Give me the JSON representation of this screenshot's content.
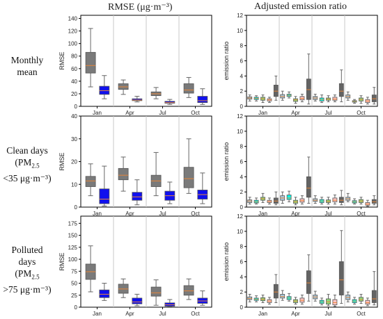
{
  "column_titles": {
    "rmse": "RMSE (μg·m⁻³)",
    "ratio": "Adjusted emission ratio"
  },
  "row_labels": {
    "monthly": [
      "Monthly",
      "mean"
    ],
    "clean": {
      "l1": "Clean days",
      "l2a": "(PM",
      "l2sub": "2.5",
      "l3": "<35 μg·m⁻³)"
    },
    "polluted": {
      "l1": "Polluted",
      "l2": "days",
      "l3a": "(PM",
      "l3sub": "2.5",
      "l4": ">75 μg·m⁻³)"
    }
  },
  "colors": {
    "gray": "#7a7a7a",
    "blue": "#1010ee",
    "median": "#e8873a",
    "ratio_palette": [
      "#a8c8dc",
      "#00ffee",
      "#90d878",
      "#ffc4c4",
      "#646464"
    ]
  },
  "chart_data": [
    {
      "type": "box",
      "panel": "rmse-monthly",
      "ylabel": "RMSE",
      "ylim": [
        0,
        145
      ],
      "yticks": [
        0,
        20,
        40,
        60,
        80,
        100,
        120,
        140
      ],
      "months": [
        "Jan",
        "Apr",
        "Jul",
        "Oct"
      ],
      "boxes": [
        {
          "month": "Jan",
          "series": "gray",
          "min": 31,
          "q1": 53,
          "median": 65,
          "q3": 86,
          "max": 124
        },
        {
          "month": "Jan",
          "series": "blue",
          "min": 12,
          "q1": 19,
          "median": 25,
          "q3": 32,
          "max": 49
        },
        {
          "month": "Apr",
          "series": "gray",
          "min": 19,
          "q1": 27,
          "median": 31,
          "q3": 36,
          "max": 42
        },
        {
          "month": "Apr",
          "series": "blue",
          "min": 7,
          "q1": 9,
          "median": 10,
          "q3": 12,
          "max": 16
        },
        {
          "month": "Jul",
          "series": "gray",
          "min": 12,
          "q1": 17,
          "median": 20,
          "q3": 23,
          "max": 30
        },
        {
          "month": "Jul",
          "series": "blue",
          "min": 3,
          "q1": 5,
          "median": 6,
          "q3": 8,
          "max": 11
        },
        {
          "month": "Oct",
          "series": "gray",
          "min": 14,
          "q1": 21,
          "median": 26,
          "q3": 36,
          "max": 46
        },
        {
          "month": "Oct",
          "series": "blue",
          "min": 3,
          "q1": 6,
          "median": 9,
          "q3": 16,
          "max": 28
        }
      ]
    },
    {
      "type": "box",
      "panel": "rmse-clean",
      "ylabel": "RMSE",
      "ylim": [
        0,
        40
      ],
      "yticks": [
        0,
        10,
        20,
        30,
        40
      ],
      "months": [
        "Jan",
        "Apr",
        "Jul",
        "Oct"
      ],
      "boxes": [
        {
          "month": "Jan",
          "series": "gray",
          "min": 5,
          "q1": 9,
          "median": 11.5,
          "q3": 13.5,
          "max": 19
        },
        {
          "month": "Jan",
          "series": "blue",
          "min": 0.5,
          "q1": 1.5,
          "median": 3.5,
          "q3": 8,
          "max": 18
        },
        {
          "month": "Apr",
          "series": "gray",
          "min": 7,
          "q1": 12,
          "median": 14,
          "q3": 17,
          "max": 22
        },
        {
          "month": "Apr",
          "series": "blue",
          "min": 1,
          "q1": 3,
          "median": 4.5,
          "q3": 6.5,
          "max": 12
        },
        {
          "month": "Jul",
          "series": "gray",
          "min": 5,
          "q1": 9,
          "median": 11.5,
          "q3": 14,
          "max": 24
        },
        {
          "month": "Jul",
          "series": "blue",
          "min": 1.5,
          "q1": 3,
          "median": 5,
          "q3": 7,
          "max": 11
        },
        {
          "month": "Oct",
          "series": "gray",
          "min": 6,
          "q1": 8.5,
          "median": 12.5,
          "q3": 17.5,
          "max": 30
        },
        {
          "month": "Oct",
          "series": "blue",
          "min": 1.5,
          "q1": 3.5,
          "median": 5.5,
          "q3": 7.5,
          "max": 15
        }
      ]
    },
    {
      "type": "box",
      "panel": "rmse-polluted",
      "ylabel": "RMSE",
      "ylim": [
        0,
        190
      ],
      "yticks": [
        0,
        25,
        50,
        75,
        100,
        125,
        150,
        175
      ],
      "months": [
        "Jan",
        "Apr",
        "Jul",
        "Oct"
      ],
      "boxes": [
        {
          "month": "Jan",
          "series": "gray",
          "min": 32,
          "q1": 58,
          "median": 74,
          "q3": 90,
          "max": 128
        },
        {
          "month": "Jan",
          "series": "blue",
          "min": 14,
          "q1": 20,
          "median": 27,
          "q3": 36,
          "max": 50
        },
        {
          "month": "Apr",
          "series": "gray",
          "min": 20,
          "q1": 29,
          "median": 38,
          "q3": 48,
          "max": 59
        },
        {
          "month": "Apr",
          "series": "blue",
          "min": 3,
          "q1": 7,
          "median": 11,
          "q3": 19,
          "max": 27
        },
        {
          "month": "Jul",
          "series": "gray",
          "min": 4,
          "q1": 23,
          "median": 30,
          "q3": 42,
          "max": 57
        },
        {
          "month": "Jul",
          "series": "blue",
          "min": 1,
          "q1": 2,
          "median": 5,
          "q3": 9,
          "max": 16
        },
        {
          "month": "Oct",
          "series": "gray",
          "min": 16,
          "q1": 25,
          "median": 34,
          "q3": 45,
          "max": 59
        },
        {
          "month": "Oct",
          "series": "blue",
          "min": 4,
          "q1": 8,
          "median": 13,
          "q3": 19,
          "max": 34
        }
      ]
    },
    {
      "type": "box",
      "panel": "ratio-monthly",
      "ylabel": "emission ratio",
      "ylim": [
        0,
        12
      ],
      "yticks": [
        0,
        2,
        4,
        6,
        8,
        10,
        12
      ],
      "months": [
        "Jan",
        "Apr",
        "Jul",
        "Oct"
      ],
      "boxes": [
        {
          "month": "Jan",
          "min": 0.7,
          "q1": 0.95,
          "median": 1.1,
          "q3": 1.25,
          "max": 1.5
        },
        {
          "month": "Jan",
          "min": 0.7,
          "q1": 0.9,
          "median": 1.05,
          "q3": 1.2,
          "max": 1.4
        },
        {
          "month": "Jan",
          "min": 0.5,
          "q1": 0.8,
          "median": 1.0,
          "q3": 1.2,
          "max": 1.5
        },
        {
          "month": "Jan",
          "min": 0.5,
          "q1": 0.7,
          "median": 0.85,
          "q3": 1.0,
          "max": 1.2
        },
        {
          "month": "Jan",
          "min": 0.8,
          "q1": 1.3,
          "median": 2.0,
          "q3": 2.8,
          "max": 4.0
        },
        {
          "month": "Apr",
          "min": 0.8,
          "q1": 1.1,
          "median": 1.3,
          "q3": 1.55,
          "max": 2.0
        },
        {
          "month": "Apr",
          "min": 1.1,
          "q1": 1.3,
          "median": 1.45,
          "q3": 1.6,
          "max": 1.9
        },
        {
          "month": "Apr",
          "min": 0.4,
          "q1": 0.65,
          "median": 0.85,
          "q3": 1.0,
          "max": 1.3
        },
        {
          "month": "Apr",
          "min": 0.6,
          "q1": 0.85,
          "median": 1.05,
          "q3": 1.3,
          "max": 1.6
        },
        {
          "month": "Apr",
          "min": 0.3,
          "q1": 0.9,
          "median": 2.2,
          "q3": 3.6,
          "max": 6.9
        },
        {
          "month": "Jul",
          "min": 0.7,
          "q1": 0.9,
          "median": 1.1,
          "q3": 1.3,
          "max": 1.6
        },
        {
          "month": "Jul",
          "min": 0.5,
          "q1": 0.7,
          "median": 0.9,
          "q3": 1.1,
          "max": 1.5
        },
        {
          "month": "Jul",
          "min": 0.6,
          "q1": 0.8,
          "median": 0.95,
          "q3": 1.1,
          "max": 1.4
        },
        {
          "month": "Jul",
          "min": 0.6,
          "q1": 0.8,
          "median": 0.95,
          "q3": 1.2,
          "max": 1.5
        },
        {
          "month": "Jul",
          "min": 0.6,
          "q1": 1.3,
          "median": 2.0,
          "q3": 3.0,
          "max": 4.8
        },
        {
          "month": "Oct",
          "min": 0.8,
          "q1": 1.1,
          "median": 1.3,
          "q3": 1.5,
          "max": 1.9
        },
        {
          "month": "Oct",
          "min": 0.4,
          "q1": 0.55,
          "median": 0.65,
          "q3": 0.75,
          "max": 0.9
        },
        {
          "month": "Oct",
          "min": 0.4,
          "q1": 0.7,
          "median": 0.9,
          "q3": 1.1,
          "max": 1.4
        },
        {
          "month": "Oct",
          "min": 0.3,
          "q1": 0.5,
          "median": 0.7,
          "q3": 0.9,
          "max": 1.2
        },
        {
          "month": "Oct",
          "min": 0.3,
          "q1": 0.6,
          "median": 1.0,
          "q3": 1.5,
          "max": 2.5
        }
      ]
    },
    {
      "type": "box",
      "panel": "ratio-clean",
      "ylabel": "emission ratio",
      "ylim": [
        0,
        12
      ],
      "yticks": [
        0,
        2,
        4,
        6,
        8,
        10,
        12
      ],
      "months": [
        "Jan",
        "Apr",
        "Jul",
        "Oct"
      ],
      "boxes": [
        {
          "month": "Jan",
          "min": 0.4,
          "q1": 0.6,
          "median": 0.8,
          "q3": 0.95,
          "max": 1.3
        },
        {
          "month": "Jan",
          "min": 0.4,
          "q1": 0.55,
          "median": 0.7,
          "q3": 0.9,
          "max": 1.2
        },
        {
          "month": "Jan",
          "min": 0.6,
          "q1": 0.9,
          "median": 1.1,
          "q3": 1.3,
          "max": 1.8
        },
        {
          "month": "Jan",
          "min": 0.4,
          "q1": 0.6,
          "median": 0.75,
          "q3": 0.9,
          "max": 1.2
        },
        {
          "month": "Jan",
          "min": 0.3,
          "q1": 0.5,
          "median": 0.8,
          "q3": 1.2,
          "max": 2.0
        },
        {
          "month": "Apr",
          "min": 0.5,
          "q1": 0.9,
          "median": 1.2,
          "q3": 1.5,
          "max": 2.0
        },
        {
          "month": "Apr",
          "min": 0.7,
          "q1": 1.0,
          "median": 1.2,
          "q3": 1.6,
          "max": 2.1
        },
        {
          "month": "Apr",
          "min": 0.3,
          "q1": 0.5,
          "median": 0.7,
          "q3": 0.9,
          "max": 1.3
        },
        {
          "month": "Apr",
          "min": 0.4,
          "q1": 0.65,
          "median": 0.85,
          "q3": 1.1,
          "max": 1.5
        },
        {
          "month": "Apr",
          "min": 0.5,
          "q1": 1.3,
          "median": 2.5,
          "q3": 4.0,
          "max": 6.6
        },
        {
          "month": "Jul",
          "min": 0.5,
          "q1": 0.75,
          "median": 0.9,
          "q3": 1.1,
          "max": 1.5
        },
        {
          "month": "Jul",
          "min": 0.4,
          "q1": 0.6,
          "median": 0.8,
          "q3": 1.0,
          "max": 1.3
        },
        {
          "month": "Jul",
          "min": 0.4,
          "q1": 0.6,
          "median": 0.75,
          "q3": 0.95,
          "max": 1.3
        },
        {
          "month": "Jul",
          "min": 0.4,
          "q1": 0.7,
          "median": 0.9,
          "q3": 1.2,
          "max": 1.6
        },
        {
          "month": "Jul",
          "min": 0.3,
          "q1": 0.6,
          "median": 0.9,
          "q3": 1.3,
          "max": 2.2
        },
        {
          "month": "Oct",
          "min": 0.7,
          "q1": 0.9,
          "median": 1.1,
          "q3": 1.3,
          "max": 1.8
        },
        {
          "month": "Oct",
          "min": 0.4,
          "q1": 0.55,
          "median": 0.7,
          "q3": 0.85,
          "max": 1.1
        },
        {
          "month": "Oct",
          "min": 0.4,
          "q1": 0.6,
          "median": 0.8,
          "q3": 1.0,
          "max": 1.3
        },
        {
          "month": "Oct",
          "min": 0.1,
          "q1": 0.25,
          "median": 0.4,
          "q3": 0.6,
          "max": 0.9
        },
        {
          "month": "Oct",
          "min": 0.3,
          "q1": 0.5,
          "median": 0.7,
          "q3": 1.0,
          "max": 1.5
        }
      ]
    },
    {
      "type": "box",
      "panel": "ratio-polluted",
      "ylabel": "emission ratio",
      "ylim": [
        0,
        12
      ],
      "yticks": [
        0,
        2,
        4,
        6,
        8,
        10,
        12
      ],
      "months": [
        "Jan",
        "Apr",
        "Jul",
        "Oct"
      ],
      "boxes": [
        {
          "month": "Jan",
          "min": 0.7,
          "q1": 1.0,
          "median": 1.15,
          "q3": 1.35,
          "max": 1.7
        },
        {
          "month": "Jan",
          "min": 0.7,
          "q1": 0.9,
          "median": 1.05,
          "q3": 1.2,
          "max": 1.5
        },
        {
          "month": "Jan",
          "min": 0.6,
          "q1": 0.85,
          "median": 1.05,
          "q3": 1.25,
          "max": 1.6
        },
        {
          "month": "Jan",
          "min": 0.4,
          "q1": 0.6,
          "median": 0.8,
          "q3": 1.0,
          "max": 1.3
        },
        {
          "month": "Jan",
          "min": 0.6,
          "q1": 1.2,
          "median": 2.0,
          "q3": 3.0,
          "max": 4.3
        },
        {
          "month": "Apr",
          "min": 0.9,
          "q1": 1.2,
          "median": 1.4,
          "q3": 1.7,
          "max": 2.2
        },
        {
          "month": "Apr",
          "min": 0.8,
          "q1": 1.0,
          "median": 1.2,
          "q3": 1.4,
          "max": 1.8
        },
        {
          "month": "Apr",
          "min": 0.4,
          "q1": 0.6,
          "median": 0.8,
          "q3": 1.0,
          "max": 1.3
        },
        {
          "month": "Apr",
          "min": 0.4,
          "q1": 0.65,
          "median": 0.9,
          "q3": 1.2,
          "max": 1.6
        },
        {
          "month": "Apr",
          "min": 0.8,
          "q1": 1.8,
          "median": 3.2,
          "q3": 4.8,
          "max": 6.9
        },
        {
          "month": "Jul",
          "min": 0.8,
          "q1": 1.1,
          "median": 1.35,
          "q3": 1.6,
          "max": 2.1
        },
        {
          "month": "Jul",
          "min": 0.3,
          "q1": 0.5,
          "median": 0.7,
          "q3": 0.9,
          "max": 1.2
        },
        {
          "month": "Jul",
          "min": 0.2,
          "q1": 0.4,
          "median": 0.7,
          "q3": 1.1,
          "max": 1.7
        },
        {
          "month": "Jul",
          "min": 0.1,
          "q1": 0.3,
          "median": 0.6,
          "q3": 1.0,
          "max": 1.6
        },
        {
          "month": "Jul",
          "min": 0.5,
          "q1": 1.6,
          "median": 3.6,
          "q3": 6.0,
          "max": 10.1
        },
        {
          "month": "Oct",
          "min": 0.7,
          "q1": 1.0,
          "median": 1.3,
          "q3": 1.6,
          "max": 2.0
        },
        {
          "month": "Oct",
          "min": 0.4,
          "q1": 0.6,
          "median": 0.8,
          "q3": 1.0,
          "max": 1.3
        },
        {
          "month": "Oct",
          "min": 0.5,
          "q1": 0.8,
          "median": 1.0,
          "q3": 1.3,
          "max": 1.7
        },
        {
          "month": "Oct",
          "min": 0.2,
          "q1": 0.4,
          "median": 0.6,
          "q3": 0.9,
          "max": 1.2
        },
        {
          "month": "Oct",
          "min": 0.3,
          "q1": 0.6,
          "median": 1.1,
          "q3": 2.2,
          "max": 4.7
        }
      ]
    }
  ]
}
